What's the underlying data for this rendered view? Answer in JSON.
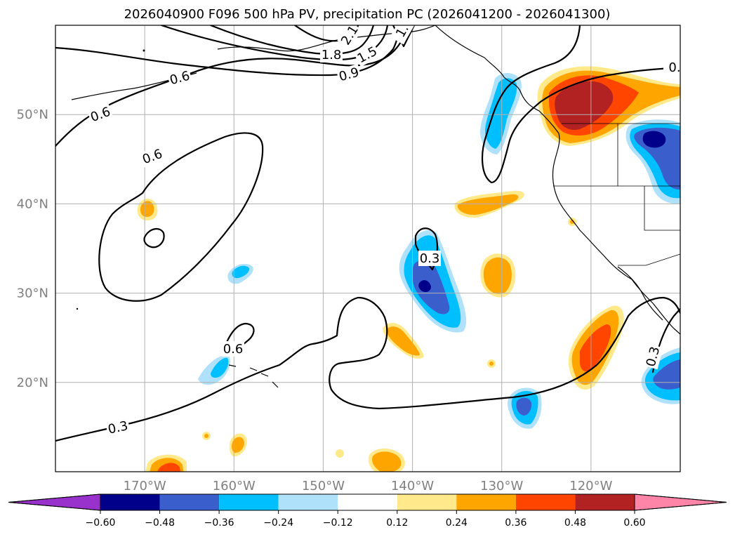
{
  "chart_data": {
    "type": "contour-map",
    "title": "2026040900 F096 500 hPa PV, precipitation PC (2026041200 - 2026041300)",
    "lon_range": [
      -180,
      -110
    ],
    "lat_range": [
      10,
      60
    ],
    "x_ticks": [
      {
        "value": -170,
        "label": "170°W"
      },
      {
        "value": -160,
        "label": "160°W"
      },
      {
        "value": -150,
        "label": "150°W"
      },
      {
        "value": -140,
        "label": "140°W"
      },
      {
        "value": -130,
        "label": "130°W"
      },
      {
        "value": -120,
        "label": "120°W"
      }
    ],
    "y_ticks": [
      {
        "value": 50,
        "label": "50°N"
      },
      {
        "value": 40,
        "label": "40°N"
      },
      {
        "value": 30,
        "label": "30°N"
      },
      {
        "value": 20,
        "label": "20°N"
      }
    ],
    "grid": true,
    "pv_contour_labels": [
      "2.1",
      "1.8",
      "1.5",
      "1.",
      "0.9",
      "0.6",
      "0.6",
      "0.6",
      "0.3",
      "0.6",
      "0.3",
      "0.3",
      "0."
    ],
    "colorbar": {
      "orientation": "horizontal",
      "extend": "both",
      "levels": [
        -0.72,
        -0.6,
        -0.48,
        -0.36,
        -0.24,
        -0.12,
        0.12,
        0.24,
        0.36,
        0.48,
        0.6,
        0.72
      ],
      "colors": [
        "#9932cc",
        "#00008b",
        "#3a5fcd",
        "#00bfff",
        "#afe1fa",
        "#ffffff",
        "#ffe98a",
        "#ffa500",
        "#ff4500",
        "#b22222",
        "#ff85a8"
      ],
      "tick_labels": [
        "−0.60",
        "−0.48",
        "−0.36",
        "−0.24",
        "−0.12",
        "0.12",
        "0.24",
        "0.36",
        "0.48",
        "0.60"
      ]
    },
    "precip_features": [
      {
        "name": "pacific-nw-positive",
        "lon": -121,
        "lat": 50,
        "peak": 0.55
      },
      {
        "name": "mexico-coast-positive",
        "lon": -120,
        "lat": 24,
        "peak": 0.5
      },
      {
        "name": "subtropical-negative",
        "lon": -138,
        "lat": 31,
        "peak": -0.5
      },
      {
        "name": "montana-negative",
        "lon": -111,
        "lat": 47,
        "peak": -0.5
      }
    ]
  }
}
